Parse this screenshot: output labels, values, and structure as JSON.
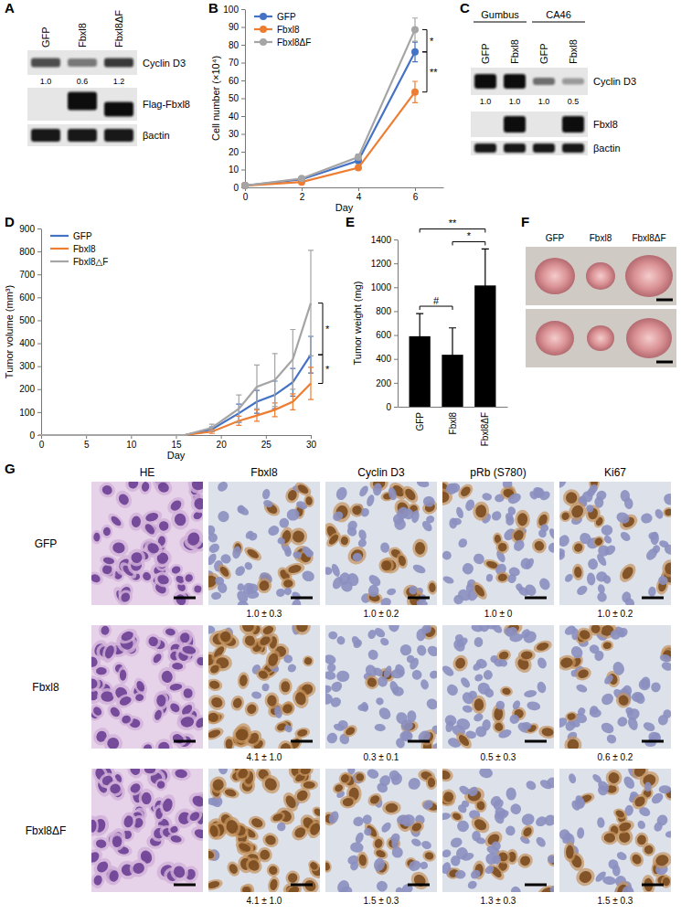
{
  "chart_data": [
    {
      "panel": "B",
      "type": "line",
      "x": [
        0,
        2,
        4,
        6
      ],
      "xlim": [
        0,
        7
      ],
      "xticks": [
        0,
        2,
        4,
        6
      ],
      "ylim": [
        0,
        100
      ],
      "yticks": [
        0,
        10,
        20,
        30,
        40,
        50,
        60,
        70,
        80,
        90,
        100
      ],
      "x_label": "Day",
      "y_label": "Cell number (×10⁴)",
      "marker": "circle",
      "legend": "upper left",
      "series": [
        {
          "name": "GFP",
          "color": "#4472c4",
          "values": [
            1,
            4.5,
            15,
            76
          ],
          "errors": [
            0.2,
            0.5,
            1.5,
            5.5
          ]
        },
        {
          "name": "Fbxl8",
          "color": "#ed7d31",
          "values": [
            1,
            3,
            11,
            53.5
          ],
          "errors": [
            0.2,
            0.4,
            1,
            6
          ]
        },
        {
          "name": "Fbxl8ΔF",
          "color": "#a5a5a5",
          "values": [
            1,
            5,
            17,
            88.5
          ],
          "errors": [
            0.2,
            0.6,
            1.5,
            6.5
          ]
        }
      ],
      "annotations": [
        {
          "text": "*",
          "between": [
            "Fbxl8ΔF",
            "GFP"
          ]
        },
        {
          "text": "**",
          "between": [
            "GFP",
            "Fbxl8"
          ]
        }
      ]
    },
    {
      "panel": "D",
      "type": "line",
      "x": [
        0,
        16,
        19,
        22,
        24,
        26,
        28,
        30
      ],
      "xlim": [
        0,
        30
      ],
      "xticks": [
        0,
        5,
        10,
        15,
        20,
        25,
        30
      ],
      "ylim": [
        0,
        900
      ],
      "yticks": [
        0,
        100,
        200,
        300,
        400,
        500,
        600,
        700,
        800,
        900
      ],
      "x_label": "Day",
      "y_label": "Tumor volume (mm³)",
      "legend": "upper left",
      "series": [
        {
          "name": "GFP",
          "color": "#4472c4",
          "values": [
            0,
            0,
            25,
            95,
            145,
            175,
            230,
            350
          ],
          "errors": [
            0,
            0,
            10,
            40,
            50,
            60,
            60,
            80
          ]
        },
        {
          "name": "Fbxl8",
          "color": "#ed7d31",
          "values": [
            0,
            0,
            15,
            62,
            85,
            110,
            145,
            225
          ],
          "errors": [
            0,
            0,
            8,
            20,
            25,
            30,
            35,
            70
          ]
        },
        {
          "name": "Fbxl8△F",
          "color": "#a5a5a5",
          "values": [
            0,
            0,
            32,
            115,
            210,
            240,
            330,
            575
          ],
          "errors": [
            0,
            0,
            15,
            60,
            95,
            115,
            130,
            230
          ]
        }
      ],
      "annotations": [
        {
          "text": "*",
          "between": [
            "Fbxl8△F",
            "GFP"
          ]
        },
        {
          "text": "*",
          "between": [
            "GFP",
            "Fbxl8"
          ]
        }
      ]
    },
    {
      "panel": "E",
      "type": "bar",
      "categories": [
        "GFP",
        "Fbxl8",
        "Fbxl8ΔF"
      ],
      "values": [
        590,
        435,
        1015
      ],
      "errors": [
        190,
        225,
        305
      ],
      "color": "#000000",
      "ylim": [
        0,
        1400
      ],
      "yticks": [
        0,
        200,
        400,
        600,
        800,
        1000,
        1200,
        1400
      ],
      "y_label": "Tumor weight (mg)",
      "annotations": [
        {
          "text": "#",
          "between": [
            "GFP",
            "Fbxl8"
          ]
        },
        {
          "text": "*",
          "between": [
            "Fbxl8",
            "Fbxl8ΔF"
          ]
        },
        {
          "text": "**",
          "between": [
            "GFP",
            "Fbxl8ΔF"
          ]
        }
      ]
    }
  ],
  "blots": [
    {
      "panel": "A",
      "lanes": [
        "GFP",
        "Fbxl8",
        "Fbxl8ΔF"
      ],
      "rows": [
        {
          "name": "Cyclin D3",
          "quant": [
            "1.0",
            "0.6",
            "1.2"
          ]
        },
        {
          "name": "Flag-Fbxl8"
        },
        {
          "name": "βactin"
        }
      ]
    },
    {
      "panel": "C",
      "groups": [
        {
          "name": "Gumbus",
          "lanes": [
            "GFP",
            "Fbxl8"
          ]
        },
        {
          "name": "CA46",
          "lanes": [
            "GFP",
            "Fbxl8"
          ]
        }
      ],
      "rows": [
        {
          "name": "Cyclin D3",
          "quant": [
            "1.0",
            "1.0",
            "1.0",
            "0.5"
          ]
        },
        {
          "name": "Fbxl8"
        },
        {
          "name": "βactin"
        }
      ]
    }
  ],
  "photos": {
    "panel": "F",
    "lanes": [
      "GFP",
      "Fbxl8",
      "Fbxl8ΔF"
    ]
  },
  "histology": {
    "panel": "G",
    "columns": [
      "HE",
      "Fbxl8",
      "Cyclin D3",
      "pRb (S780)",
      "Ki67"
    ],
    "rows": [
      {
        "name": "GFP",
        "quant": [
          "1.0 ± 0.3",
          "1.0 ± 0.2",
          "1.0 ± 0",
          "1.0 ± 0.2"
        ]
      },
      {
        "name": "Fbxl8",
        "quant": [
          "4.1 ± 1.0",
          "0.3 ± 0.1",
          "0.5 ± 0.3",
          "0.6 ± 0.2"
        ]
      },
      {
        "name": "Fbxl8ΔF",
        "quant": [
          "4.1 ± 1.0",
          "1.5 ± 0.3",
          "1.3 ± 0.3",
          "1.5 ± 0.3"
        ]
      }
    ]
  }
}
